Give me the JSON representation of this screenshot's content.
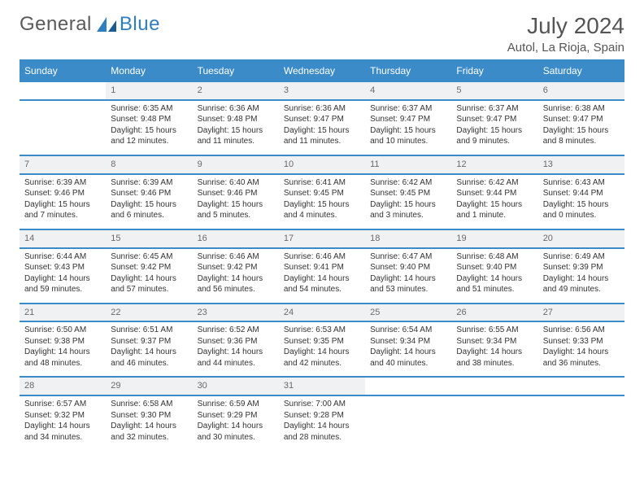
{
  "logo": {
    "text1": "General",
    "text2": "Blue"
  },
  "title": "July 2024",
  "location": "Autol, La Rioja, Spain",
  "colors": {
    "header_bg": "#3b8bc9",
    "header_text": "#ffffff",
    "row_border": "#3b8bc9",
    "daynum_bg": "#f0f1f2",
    "daynum_text": "#6a6a6a",
    "body_text": "#333333",
    "logo_gray": "#5a5a5a",
    "logo_blue": "#2f7fbf",
    "page_bg": "#ffffff"
  },
  "typography": {
    "title_fontsize": 28,
    "location_fontsize": 15,
    "header_fontsize": 12,
    "daynum_fontsize": 11,
    "cell_fontsize": 10,
    "logo_fontsize": 24
  },
  "weekdays": [
    "Sunday",
    "Monday",
    "Tuesday",
    "Wednesday",
    "Thursday",
    "Friday",
    "Saturday"
  ],
  "weeks": [
    {
      "nums": [
        "",
        "1",
        "2",
        "3",
        "4",
        "5",
        "6"
      ],
      "cells": [
        null,
        {
          "sr": "6:35 AM",
          "ss": "9:48 PM",
          "dl": "15 hours and 12 minutes."
        },
        {
          "sr": "6:36 AM",
          "ss": "9:48 PM",
          "dl": "15 hours and 11 minutes."
        },
        {
          "sr": "6:36 AM",
          "ss": "9:47 PM",
          "dl": "15 hours and 11 minutes."
        },
        {
          "sr": "6:37 AM",
          "ss": "9:47 PM",
          "dl": "15 hours and 10 minutes."
        },
        {
          "sr": "6:37 AM",
          "ss": "9:47 PM",
          "dl": "15 hours and 9 minutes."
        },
        {
          "sr": "6:38 AM",
          "ss": "9:47 PM",
          "dl": "15 hours and 8 minutes."
        }
      ]
    },
    {
      "nums": [
        "7",
        "8",
        "9",
        "10",
        "11",
        "12",
        "13"
      ],
      "cells": [
        {
          "sr": "6:39 AM",
          "ss": "9:46 PM",
          "dl": "15 hours and 7 minutes."
        },
        {
          "sr": "6:39 AM",
          "ss": "9:46 PM",
          "dl": "15 hours and 6 minutes."
        },
        {
          "sr": "6:40 AM",
          "ss": "9:46 PM",
          "dl": "15 hours and 5 minutes."
        },
        {
          "sr": "6:41 AM",
          "ss": "9:45 PM",
          "dl": "15 hours and 4 minutes."
        },
        {
          "sr": "6:42 AM",
          "ss": "9:45 PM",
          "dl": "15 hours and 3 minutes."
        },
        {
          "sr": "6:42 AM",
          "ss": "9:44 PM",
          "dl": "15 hours and 1 minute."
        },
        {
          "sr": "6:43 AM",
          "ss": "9:44 PM",
          "dl": "15 hours and 0 minutes."
        }
      ]
    },
    {
      "nums": [
        "14",
        "15",
        "16",
        "17",
        "18",
        "19",
        "20"
      ],
      "cells": [
        {
          "sr": "6:44 AM",
          "ss": "9:43 PM",
          "dl": "14 hours and 59 minutes."
        },
        {
          "sr": "6:45 AM",
          "ss": "9:42 PM",
          "dl": "14 hours and 57 minutes."
        },
        {
          "sr": "6:46 AM",
          "ss": "9:42 PM",
          "dl": "14 hours and 56 minutes."
        },
        {
          "sr": "6:46 AM",
          "ss": "9:41 PM",
          "dl": "14 hours and 54 minutes."
        },
        {
          "sr": "6:47 AM",
          "ss": "9:40 PM",
          "dl": "14 hours and 53 minutes."
        },
        {
          "sr": "6:48 AM",
          "ss": "9:40 PM",
          "dl": "14 hours and 51 minutes."
        },
        {
          "sr": "6:49 AM",
          "ss": "9:39 PM",
          "dl": "14 hours and 49 minutes."
        }
      ]
    },
    {
      "nums": [
        "21",
        "22",
        "23",
        "24",
        "25",
        "26",
        "27"
      ],
      "cells": [
        {
          "sr": "6:50 AM",
          "ss": "9:38 PM",
          "dl": "14 hours and 48 minutes."
        },
        {
          "sr": "6:51 AM",
          "ss": "9:37 PM",
          "dl": "14 hours and 46 minutes."
        },
        {
          "sr": "6:52 AM",
          "ss": "9:36 PM",
          "dl": "14 hours and 44 minutes."
        },
        {
          "sr": "6:53 AM",
          "ss": "9:35 PM",
          "dl": "14 hours and 42 minutes."
        },
        {
          "sr": "6:54 AM",
          "ss": "9:34 PM",
          "dl": "14 hours and 40 minutes."
        },
        {
          "sr": "6:55 AM",
          "ss": "9:34 PM",
          "dl": "14 hours and 38 minutes."
        },
        {
          "sr": "6:56 AM",
          "ss": "9:33 PM",
          "dl": "14 hours and 36 minutes."
        }
      ]
    },
    {
      "nums": [
        "28",
        "29",
        "30",
        "31",
        "",
        "",
        ""
      ],
      "cells": [
        {
          "sr": "6:57 AM",
          "ss": "9:32 PM",
          "dl": "14 hours and 34 minutes."
        },
        {
          "sr": "6:58 AM",
          "ss": "9:30 PM",
          "dl": "14 hours and 32 minutes."
        },
        {
          "sr": "6:59 AM",
          "ss": "9:29 PM",
          "dl": "14 hours and 30 minutes."
        },
        {
          "sr": "7:00 AM",
          "ss": "9:28 PM",
          "dl": "14 hours and 28 minutes."
        },
        null,
        null,
        null
      ]
    }
  ],
  "labels": {
    "sunrise": "Sunrise: ",
    "sunset": "Sunset: ",
    "daylight": "Daylight: "
  }
}
